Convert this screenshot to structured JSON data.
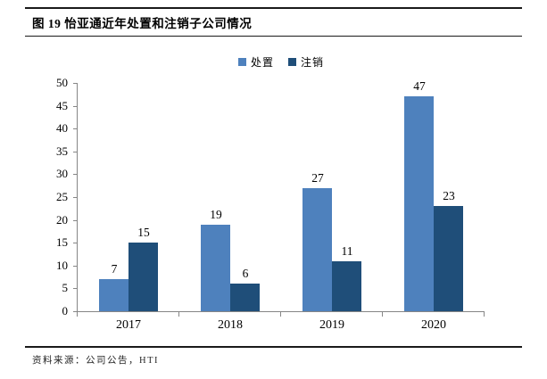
{
  "figure": {
    "title": "图 19 怡亚通近年处置和注销子公司情况",
    "source": "资料来源：公司公告，HTI"
  },
  "chart_data": {
    "type": "bar",
    "title": "图 19 怡亚通近年处置和注销子公司情况",
    "categories": [
      "2017",
      "2018",
      "2019",
      "2020"
    ],
    "series": [
      {
        "name": "处置",
        "color": "#4E81BD",
        "values": [
          7,
          19,
          27,
          47
        ]
      },
      {
        "name": "注销",
        "color": "#1F4E79",
        "values": [
          15,
          6,
          11,
          23
        ]
      }
    ],
    "xlabel": "",
    "ylabel": "",
    "ylim": [
      0,
      50
    ],
    "ytick_step": 5,
    "yticks": [
      0,
      5,
      10,
      15,
      20,
      25,
      30,
      35,
      40,
      45,
      50
    ],
    "grid": false,
    "value_labels": true,
    "legend_position": "top-center",
    "axis_color": "#868686"
  }
}
